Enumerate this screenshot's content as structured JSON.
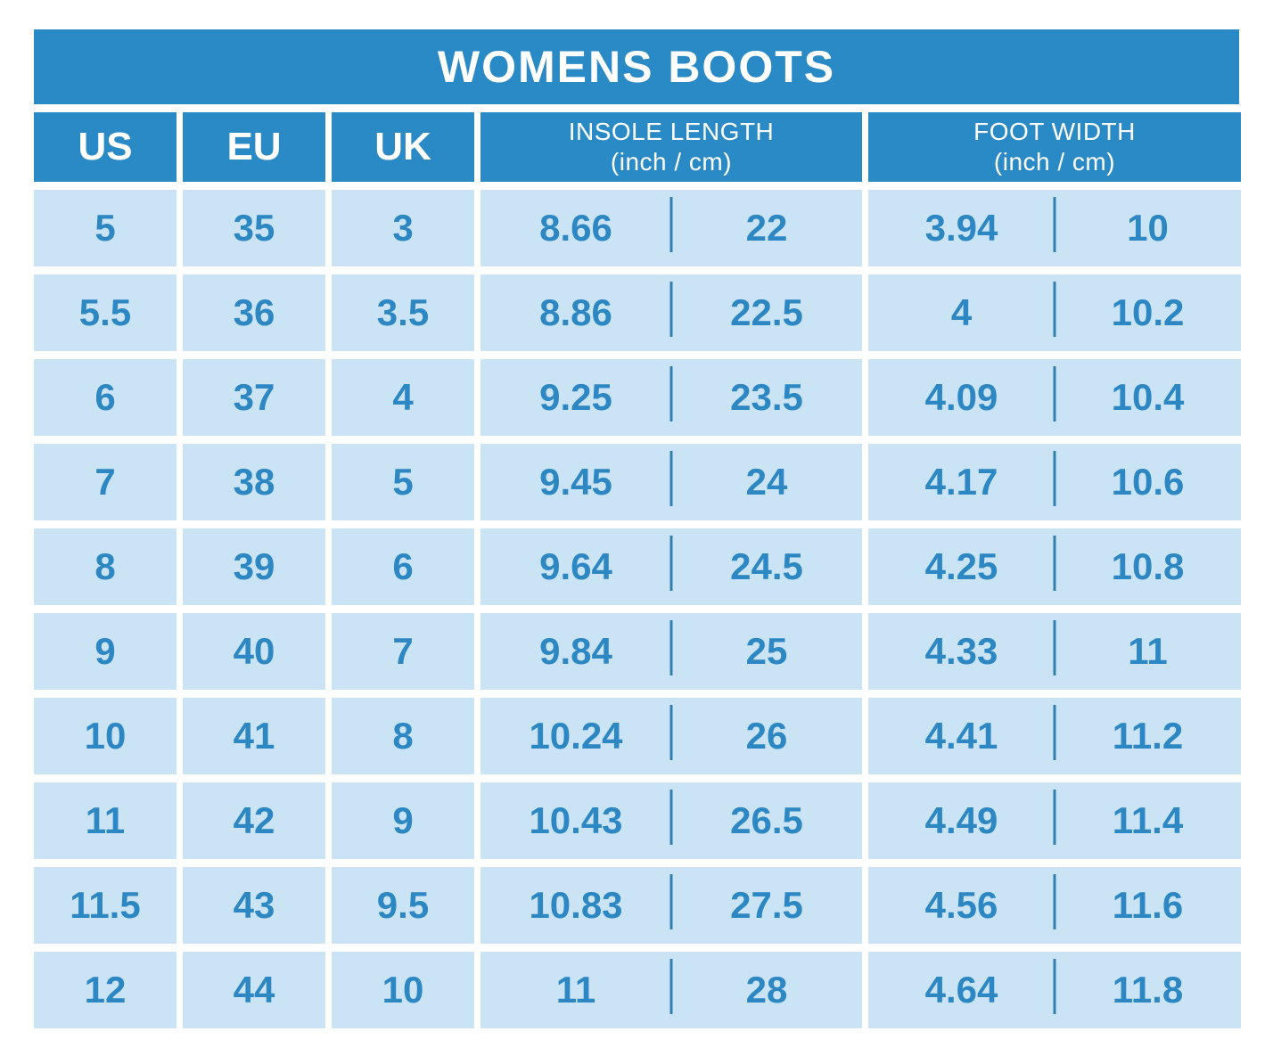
{
  "title": "WOMENS BOOTS",
  "headers": {
    "us": "US",
    "eu": "EU",
    "uk": "UK",
    "insole": {
      "label": "INSOLE LENGTH",
      "sublabel": "(inch / cm)"
    },
    "foot": {
      "label": "FOOT WIDTH",
      "sublabel": "(inch / cm)"
    }
  },
  "table": {
    "rows": [
      {
        "us": "5",
        "eu": "35",
        "uk": "3",
        "insole_inch": "8.66",
        "insole_cm": "22",
        "foot_inch": "3.94",
        "foot_cm": "10"
      },
      {
        "us": "5.5",
        "eu": "36",
        "uk": "3.5",
        "insole_inch": "8.86",
        "insole_cm": "22.5",
        "foot_inch": "4",
        "foot_cm": "10.2"
      },
      {
        "us": "6",
        "eu": "37",
        "uk": "4",
        "insole_inch": "9.25",
        "insole_cm": "23.5",
        "foot_inch": "4.09",
        "foot_cm": "10.4"
      },
      {
        "us": "7",
        "eu": "38",
        "uk": "5",
        "insole_inch": "9.45",
        "insole_cm": "24",
        "foot_inch": "4.17",
        "foot_cm": "10.6"
      },
      {
        "us": "8",
        "eu": "39",
        "uk": "6",
        "insole_inch": "9.64",
        "insole_cm": "24.5",
        "foot_inch": "4.25",
        "foot_cm": "10.8"
      },
      {
        "us": "9",
        "eu": "40",
        "uk": "7",
        "insole_inch": "9.84",
        "insole_cm": "25",
        "foot_inch": "4.33",
        "foot_cm": "11"
      },
      {
        "us": "10",
        "eu": "41",
        "uk": "8",
        "insole_inch": "10.24",
        "insole_cm": "26",
        "foot_inch": "4.41",
        "foot_cm": "11.2"
      },
      {
        "us": "11",
        "eu": "42",
        "uk": "9",
        "insole_inch": "10.43",
        "insole_cm": "26.5",
        "foot_inch": "4.49",
        "foot_cm": "11.4"
      },
      {
        "us": "11.5",
        "eu": "43",
        "uk": "9.5",
        "insole_inch": "10.83",
        "insole_cm": "27.5",
        "foot_inch": "4.56",
        "foot_cm": "11.6"
      },
      {
        "us": "12",
        "eu": "44",
        "uk": "10",
        "insole_inch": "11",
        "insole_cm": "28",
        "foot_inch": "4.64",
        "foot_cm": "11.8"
      }
    ]
  },
  "colors": {
    "bar_blue": "#2A8AC5",
    "cell_background": "#CBE4F5",
    "value_text": "#2C87C3",
    "divider": "#2F7FB0",
    "page_background": "#FFFFFF"
  },
  "chart_data": {
    "type": "table",
    "title": "WOMENS BOOTS",
    "columns": [
      "US",
      "EU",
      "UK",
      "INSOLE LENGTH (inch)",
      "INSOLE LENGTH (cm)",
      "FOOT WIDTH (inch)",
      "FOOT WIDTH (cm)"
    ],
    "rows": [
      [
        "5",
        "35",
        "3",
        "8.66",
        "22",
        "3.94",
        "10"
      ],
      [
        "5.5",
        "36",
        "3.5",
        "8.86",
        "22.5",
        "4",
        "10.2"
      ],
      [
        "6",
        "37",
        "4",
        "9.25",
        "23.5",
        "4.09",
        "10.4"
      ],
      [
        "7",
        "38",
        "5",
        "9.45",
        "24",
        "4.17",
        "10.6"
      ],
      [
        "8",
        "39",
        "6",
        "9.64",
        "24.5",
        "4.25",
        "10.8"
      ],
      [
        "9",
        "40",
        "7",
        "9.84",
        "25",
        "4.33",
        "11"
      ],
      [
        "10",
        "41",
        "8",
        "10.24",
        "26",
        "4.41",
        "11.2"
      ],
      [
        "11",
        "42",
        "9",
        "10.43",
        "26.5",
        "4.49",
        "11.4"
      ],
      [
        "11.5",
        "43",
        "9.5",
        "10.83",
        "27.5",
        "4.56",
        "11.6"
      ],
      [
        "12",
        "44",
        "10",
        "11",
        "28",
        "4.64",
        "11.8"
      ]
    ],
    "legend_position": "none",
    "grid": false
  }
}
